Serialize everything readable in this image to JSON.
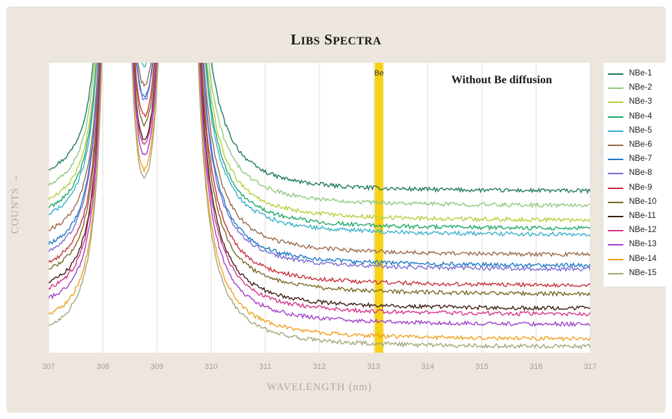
{
  "chart_data": {
    "type": "line",
    "title": "LIBS Spectra",
    "xlabel": "WAVELENGTH (nm)",
    "ylabel": "COUNTS",
    "ylabel_arrow": "→",
    "annotation": "Without Be diffusion",
    "highlight": {
      "label": "Be",
      "x_center": 313.1,
      "x_width": 0.16,
      "color": "#f5d21b"
    },
    "xlim": [
      307,
      317
    ],
    "x_ticks": [
      "307",
      "308",
      "309",
      "310",
      "311",
      "312",
      "313",
      "314",
      "315",
      "316",
      "317"
    ],
    "ylim": [
      0,
      100
    ],
    "y_ticks_shown": false,
    "grid": "vertical",
    "legend_position": "right",
    "peaks": [
      308.25,
      309.4
    ],
    "series": [
      {
        "name": "NBe-1",
        "color": "#1e7a5c",
        "baseline": 55.5,
        "base_left": 56.5,
        "rise": 28,
        "valley_depth": 0.85
      },
      {
        "name": "NBe-2",
        "color": "#8ec97e",
        "baseline": 50.5,
        "base_left": 50.8,
        "rise": 20,
        "valley_depth": 0.82
      },
      {
        "name": "NBe-3",
        "color": "#b6cf3c",
        "baseline": 45.5,
        "base_left": 46.0,
        "rise": 18,
        "valley_depth": 0.8
      },
      {
        "name": "NBe-4",
        "color": "#22a86a",
        "baseline": 42.6,
        "base_left": 43.3,
        "rise": 16,
        "valley_depth": 0.78
      },
      {
        "name": "NBe-5",
        "color": "#3ab0cc",
        "baseline": 40.5,
        "base_left": 41.0,
        "rise": 14,
        "valley_depth": 0.76
      },
      {
        "name": "NBe-6",
        "color": "#9a6b4b",
        "baseline": 33.6,
        "base_left": 35.5,
        "rise": 15,
        "valley_depth": 0.75
      },
      {
        "name": "NBe-7",
        "color": "#1f7ac8",
        "baseline": 29.8,
        "base_left": 30.5,
        "rise": 13,
        "valley_depth": 0.74
      },
      {
        "name": "NBe-8",
        "color": "#7a6fd0",
        "baseline": 28.5,
        "base_left": 28.0,
        "rise": 12,
        "valley_depth": 0.72
      },
      {
        "name": "NBe-9",
        "color": "#c8303c",
        "baseline": 23.0,
        "base_left": 24.5,
        "rise": 13,
        "valley_depth": 0.7
      },
      {
        "name": "NBe-10",
        "color": "#7a6a28",
        "baseline": 20.0,
        "base_left": 22.0,
        "rise": 12,
        "valley_depth": 0.68
      },
      {
        "name": "NBe-11",
        "color": "#3d1f14",
        "baseline": 15.0,
        "base_left": 17.5,
        "rise": 12,
        "valley_depth": 0.66
      },
      {
        "name": "NBe-12",
        "color": "#d6338a",
        "baseline": 13.0,
        "base_left": 15.5,
        "rise": 11,
        "valley_depth": 0.64
      },
      {
        "name": "NBe-13",
        "color": "#a040c8",
        "baseline": 9.5,
        "base_left": 12.0,
        "rise": 10,
        "valley_depth": 0.62
      },
      {
        "name": "NBe-14",
        "color": "#f0a020",
        "baseline": 4.5,
        "base_left": 6.5,
        "rise": 9,
        "valley_depth": 0.55
      },
      {
        "name": "NBe-15",
        "color": "#a0a878",
        "baseline": 1.8,
        "base_left": 2.5,
        "rise": 7,
        "valley_depth": 0.5
      }
    ]
  }
}
